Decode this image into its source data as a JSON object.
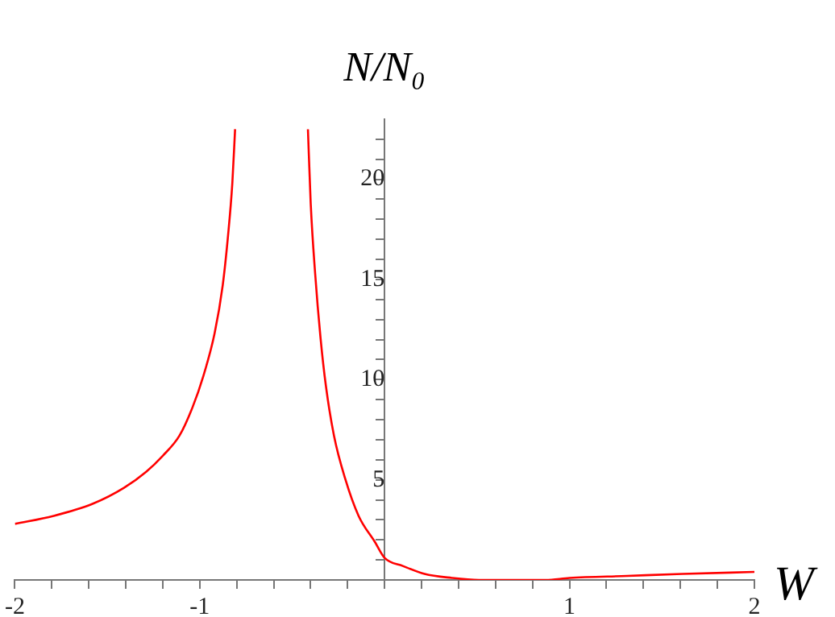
{
  "chart_data": {
    "type": "line",
    "xlabel": "W",
    "ylabel": "N/N₀",
    "xlim": [
      -2,
      2
    ],
    "ylim": [
      0,
      23
    ],
    "xticks": [
      -2,
      {
        "value": -1.8,
        "label": null
      },
      {
        "value": -1.6,
        "label": null
      },
      {
        "value": -1.4,
        "label": null
      },
      {
        "value": -1.2,
        "label": null
      },
      -1,
      {
        "value": -0.8,
        "label": null
      },
      {
        "value": -0.6,
        "label": null
      },
      {
        "value": -0.4,
        "label": null
      },
      {
        "value": -0.2,
        "label": null
      },
      {
        "value": 0,
        "label": null
      },
      {
        "value": 0.2,
        "label": null
      },
      {
        "value": 0.4,
        "label": null
      },
      {
        "value": 0.6,
        "label": null
      },
      {
        "value": 0.8,
        "label": null
      },
      1,
      {
        "value": 1.2,
        "label": null
      },
      {
        "value": 1.4,
        "label": null
      },
      {
        "value": 1.6,
        "label": null
      },
      {
        "value": 1.8,
        "label": null
      },
      2
    ],
    "yticks": [
      {
        "value": 1,
        "label": null
      },
      {
        "value": 2,
        "label": null
      },
      {
        "value": 3,
        "label": null
      },
      {
        "value": 4,
        "label": null
      },
      5,
      {
        "value": 6,
        "label": null
      },
      {
        "value": 7,
        "label": null
      },
      {
        "value": 8,
        "label": null
      },
      {
        "value": 9,
        "label": null
      },
      10,
      {
        "value": 11,
        "label": null
      },
      {
        "value": 12,
        "label": null
      },
      {
        "value": 13,
        "label": null
      },
      {
        "value": 14,
        "label": null
      },
      15,
      {
        "value": 16,
        "label": null
      },
      {
        "value": 17,
        "label": null
      },
      {
        "value": 18,
        "label": null
      },
      {
        "value": 19,
        "label": null
      },
      20,
      {
        "value": 21,
        "label": null
      },
      {
        "value": 22,
        "label": null
      }
    ],
    "series": [
      {
        "color": "#ff0000",
        "x": [
          -2,
          -1.79,
          -1.58,
          -1.41,
          -1.29,
          -1.2,
          -1.11,
          -1.04,
          -0.98,
          -0.92,
          -0.876,
          -0.847,
          -0.824,
          -0.809
        ],
        "values": [
          2.8,
          3.2,
          3.8,
          4.6,
          5.4,
          6.2,
          7.2,
          8.6,
          10.2,
          12.3,
          14.7,
          17.2,
          19.8,
          22.5
        ]
      },
      {
        "color": "#ff0000",
        "x": [
          -0.415,
          -0.4,
          -0.376,
          -0.347,
          -0.318,
          -0.274,
          -0.215,
          -0.141,
          -0.053,
          0,
          0.098,
          0.216,
          0.364,
          0.51,
          0.66,
          0.87,
          1,
          1.31,
          1.61,
          2
        ],
        "values": [
          22.5,
          18.8,
          15.3,
          12.1,
          9.7,
          7.2,
          5.1,
          3.2,
          1.9,
          1.1,
          0.7,
          0.3,
          0.1,
          0,
          0,
          0,
          0.1,
          0.2,
          0.3,
          0.4
        ]
      }
    ]
  }
}
